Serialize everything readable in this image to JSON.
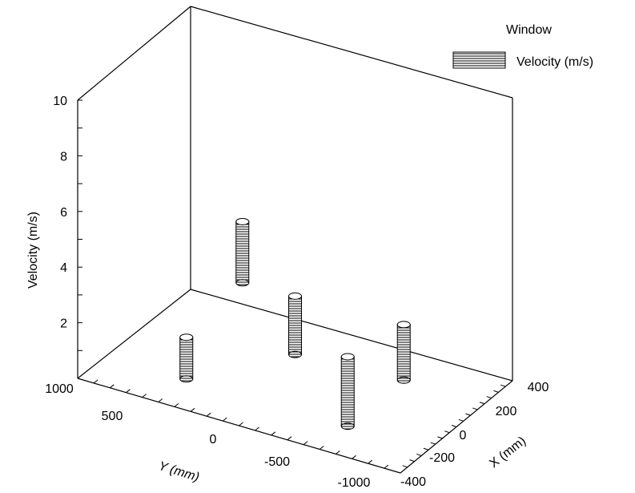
{
  "chart_data": {
    "type": "bar3d",
    "legend": {
      "title": "Window",
      "label": "Velocity (m/s)",
      "placement": "top-right"
    },
    "zlabel": "Velocity (m/s)",
    "ylabel": "Y (mm)",
    "xlabel": "X (mm)",
    "zlim": [
      0,
      10
    ],
    "ylim": [
      -1000,
      1000
    ],
    "xlim": [
      -400,
      400
    ],
    "z_ticks": [
      "10",
      "8",
      "6",
      "4",
      "2"
    ],
    "y_ticks": [
      "1000",
      "500",
      "0",
      "-500",
      "-1000"
    ],
    "x_ticks": [
      "400",
      "200",
      "0",
      "-200",
      "-400"
    ],
    "points": [
      {
        "x": -200,
        "y": 500,
        "bottom": 0,
        "value": 1.5
      },
      {
        "x": 200,
        "y": 500,
        "bottom": 1.8,
        "value": 4.0
      },
      {
        "x": 0,
        "y": 0,
        "bottom": 0.9,
        "value": 3.0
      },
      {
        "x": -200,
        "y": -500,
        "bottom": 0,
        "value": 2.5
      },
      {
        "x": 200,
        "y": -500,
        "bottom": 0,
        "value": 2.0
      }
    ]
  }
}
